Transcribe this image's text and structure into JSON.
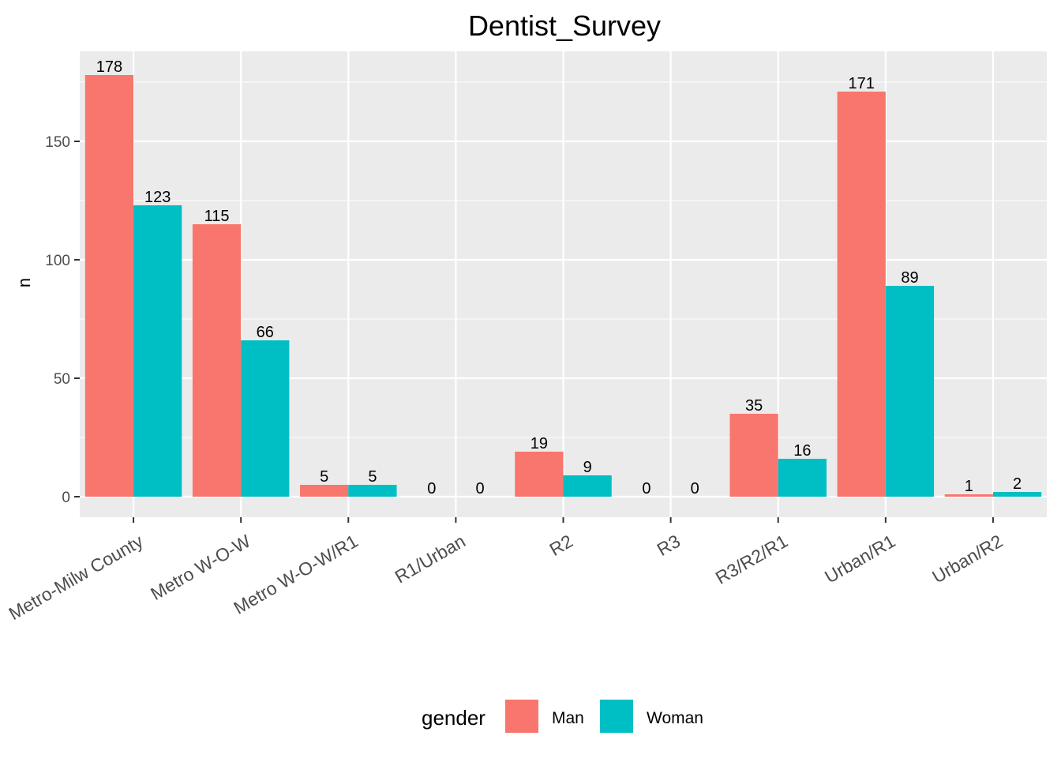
{
  "chart_data": {
    "type": "bar",
    "title": "Dentist_Survey",
    "xlabel": "",
    "ylabel": "n",
    "ylim": [
      -7,
      184
    ],
    "yticks": [
      0,
      50,
      100,
      150
    ],
    "grid": true,
    "legend_position": "bottom",
    "legend_title": "gender",
    "categories": [
      "Metro-Milw County",
      "Metro W-O-W",
      "Metro W-O-W/R1",
      "R1/Urban",
      "R2",
      "R3",
      "R3/R2/R1",
      "Urban/R1",
      "Urban/R2"
    ],
    "series": [
      {
        "name": "Man",
        "color": "#F8766D",
        "values": [
          178,
          115,
          5,
          0,
          19,
          0,
          35,
          171,
          1
        ]
      },
      {
        "name": "Woman",
        "color": "#00BFC4",
        "values": [
          123,
          66,
          5,
          0,
          9,
          0,
          16,
          89,
          2
        ]
      }
    ]
  }
}
